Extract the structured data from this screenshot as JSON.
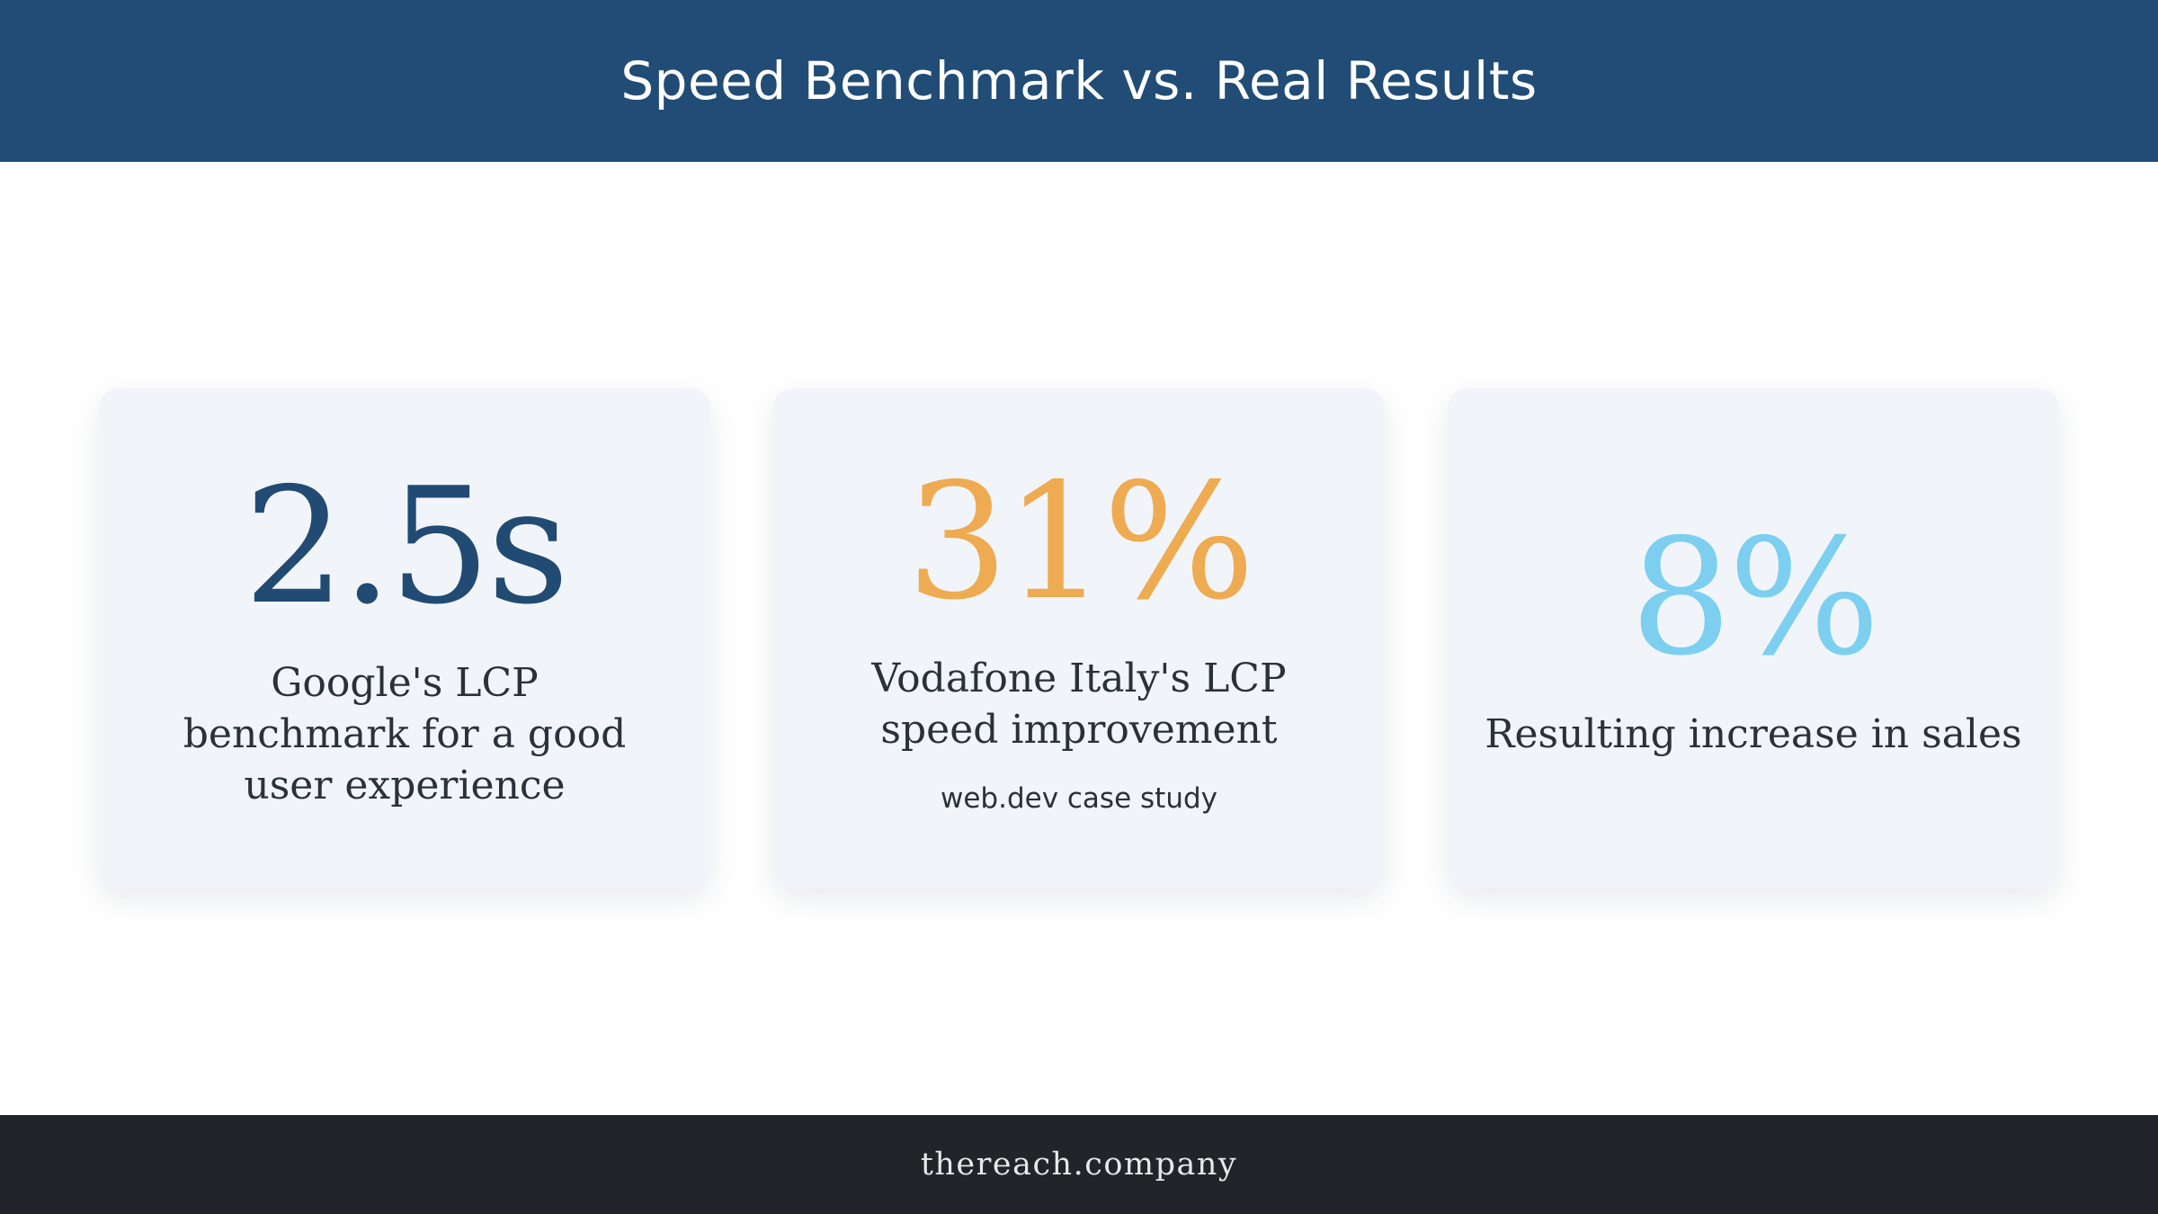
{
  "header": {
    "title": "Speed Benchmark vs. Real Results"
  },
  "cards": [
    {
      "stat": "2.5s",
      "stat_color": "#224b73",
      "description": "Google's LCP benchmark for a good user experience"
    },
    {
      "stat": "31%",
      "stat_color": "#eeab52",
      "description": "Vodafone Italy's LCP speed improvement",
      "source": "web.dev case study"
    },
    {
      "stat": "8%",
      "stat_color": "#7dcff0",
      "description": "Resulting increase in sales"
    }
  ],
  "footer": {
    "text": "thereach.company"
  },
  "colors": {
    "header_bg": "#214c75",
    "footer_bg": "#212529",
    "card_bg": "#f1f5f9"
  }
}
